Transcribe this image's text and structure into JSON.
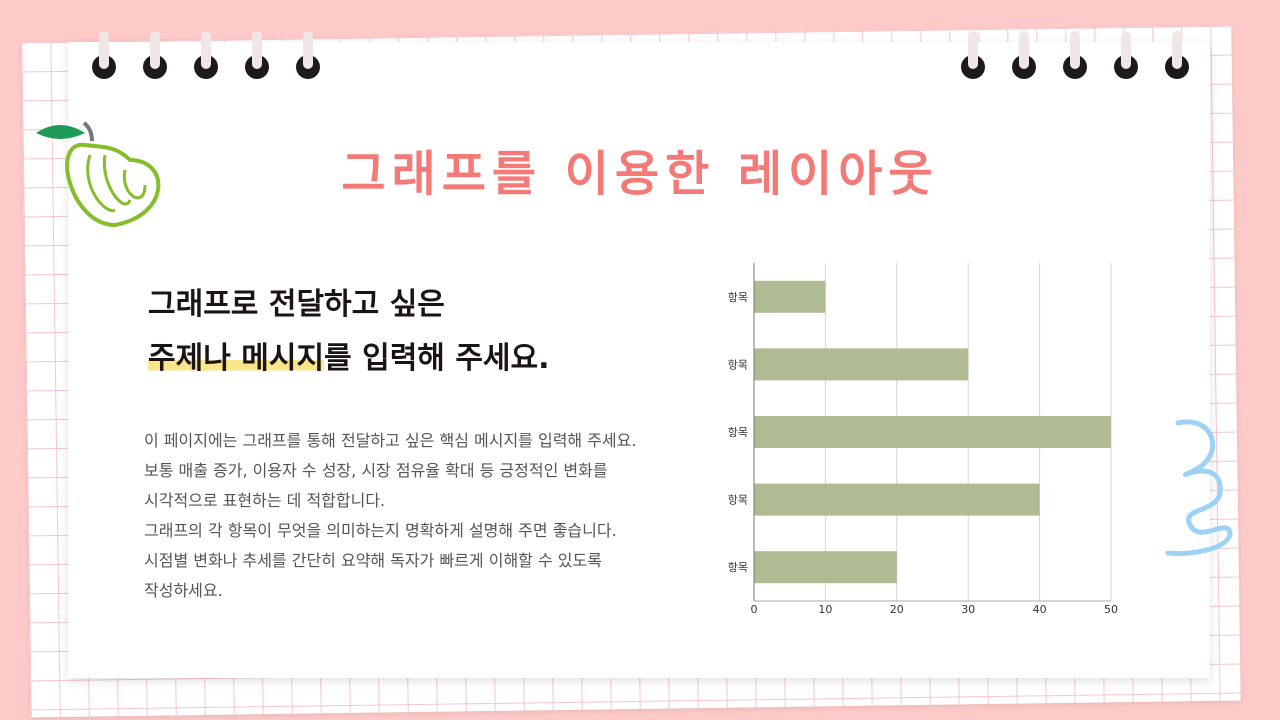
{
  "title": "그래프를 이용한 레이아웃",
  "heading": {
    "line1": "그래프로 전달하고 싶은",
    "line2_highlight": "주제나 메시지",
    "line2_rest": "를 입력해 주세요."
  },
  "body": [
    "이 페이지에는 그래프를 통해 전달하고 싶은 핵심 메시지를 입력해 주세요.",
    "보통 매출 증가, 이용자 수 성장, 시장 점유율 확대 등 긍정적인 변화를",
    "시각적으로 표현하는 데 적합합니다.",
    "그래프의 각 항목이 무엇을 의미하는지 명확하게 설명해 주면 좋습니다.",
    "시점별 변화나 추세를 간단히 요약해 독자가 빠르게 이해할 수 있도록",
    "작성하세요."
  ],
  "colors": {
    "background": "#fdc9c9",
    "title": "#f47a78",
    "bar": "#afbb92",
    "highlight": "#fbe58a"
  },
  "chart_data": {
    "type": "bar",
    "orientation": "horizontal",
    "categories": [
      "항목",
      "항목",
      "항목",
      "항목",
      "항목"
    ],
    "values": [
      10,
      30,
      50,
      40,
      20
    ],
    "xlim": [
      0,
      50
    ],
    "xticks": [
      "0",
      "10",
      "20",
      "30",
      "40",
      "50"
    ],
    "grid": true,
    "title": "",
    "xlabel": "",
    "ylabel": ""
  }
}
